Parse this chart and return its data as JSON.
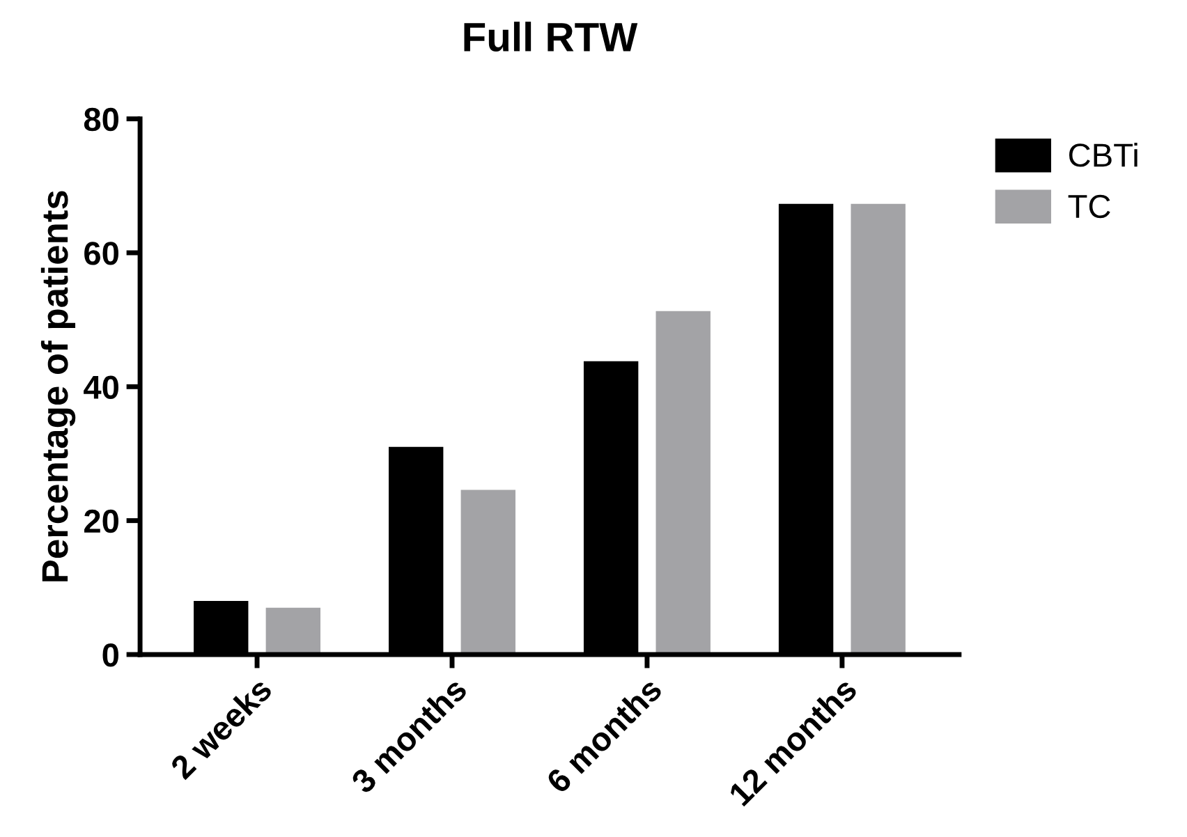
{
  "chart_data": {
    "type": "bar",
    "title": "Full RTW",
    "ylabel": "Percentage of patients",
    "categories": [
      "2 weeks",
      "3 months",
      "6 months",
      "12 months"
    ],
    "series": [
      {
        "name": "CBTi",
        "color": "#000000",
        "values": [
          8.0,
          31.0,
          43.8,
          67.3
        ]
      },
      {
        "name": "TC",
        "color": "#a3a3a6",
        "values": [
          7.0,
          24.6,
          51.3,
          67.3
        ]
      }
    ],
    "ylim": [
      0,
      80
    ],
    "yticks": [
      0,
      20,
      40,
      60,
      80
    ],
    "grid": false,
    "legend": "top right"
  }
}
